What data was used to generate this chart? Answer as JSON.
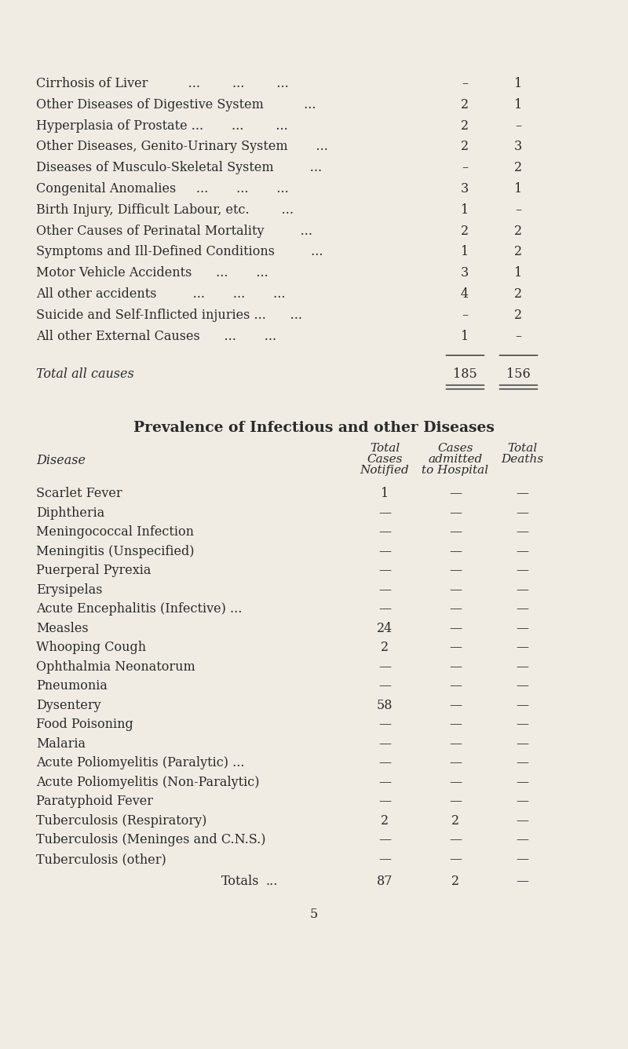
{
  "bg_color": "#f0ece4",
  "text_color": "#2a2a2a",
  "page_number": "5",
  "section1": {
    "rows": [
      {
        "disease": "Cirrhosis of Liver          ...        ...        ...",
        "col1": "–",
        "col2": "1"
      },
      {
        "disease": "Other Diseases of Digestive System          ...",
        "col1": "2",
        "col2": "1"
      },
      {
        "disease": "Hyperplasia of Prostate ...       ...        ...",
        "col1": "2",
        "col2": "–"
      },
      {
        "disease": "Other Diseases, Genito-Urinary System       ...",
        "col1": "2",
        "col2": "3"
      },
      {
        "disease": "Diseases of Musculo-Skeletal System         ...",
        "col1": "–",
        "col2": "2"
      },
      {
        "disease": "Congenital Anomalies     ...       ...       ...",
        "col1": "3",
        "col2": "1"
      },
      {
        "disease": "Birth Injury, Difficult Labour, etc.        ...",
        "col1": "1",
        "col2": "–"
      },
      {
        "disease": "Other Causes of Perinatal Mortality         ...",
        "col1": "2",
        "col2": "2"
      },
      {
        "disease": "Symptoms and Ill-Defined Conditions         ...",
        "col1": "1",
        "col2": "2"
      },
      {
        "disease": "Motor Vehicle Accidents      ...       ...",
        "col1": "3",
        "col2": "1"
      },
      {
        "disease": "All other accidents         ...       ...       ...",
        "col1": "4",
        "col2": "2"
      },
      {
        "disease": "Suicide and Self-Inflicted injuries ...      ...",
        "col1": "–",
        "col2": "2"
      },
      {
        "disease": "All other External Causes      ...       ...",
        "col1": "1",
        "col2": "–"
      }
    ],
    "total_label": "Total all causes",
    "total_col1": "185",
    "total_col2": "156"
  },
  "section2": {
    "title": "Prevalence of Infectious and other Diseases",
    "rows": [
      {
        "disease": "Scarlet Fever",
        "ellipsis": "...        ...",
        "col1": "1",
        "col2": "—",
        "col3": "—"
      },
      {
        "disease": "Diphtheria",
        "ellipsis": "...        ...   ...",
        "col1": "—",
        "col2": "—",
        "col3": "—"
      },
      {
        "disease": "Meningococcal Infection",
        "ellipsis": "...",
        "col1": "—",
        "col2": "—",
        "col3": "—"
      },
      {
        "disease": "Meningitis (Unspecified)",
        "ellipsis": "...",
        "col1": "—",
        "col2": "—",
        "col3": "—"
      },
      {
        "disease": "Puerperal Pyrexia",
        "ellipsis": "...        ...",
        "col1": "—",
        "col2": "—",
        "col3": "—"
      },
      {
        "disease": "Erysipelas",
        "ellipsis": "...        ...",
        "col1": "—",
        "col2": "—",
        "col3": "—"
      },
      {
        "disease": "Acute Encephalitis (Infective) ...",
        "ellipsis": "",
        "col1": "—",
        "col2": "—",
        "col3": "—"
      },
      {
        "disease": "Measles",
        "ellipsis": "...        ...   ...",
        "col1": "24",
        "col2": "—",
        "col3": "—"
      },
      {
        "disease": "Whooping Cough",
        "ellipsis": "...        ...",
        "col1": "2",
        "col2": "—",
        "col3": "—"
      },
      {
        "disease": "Ophthalmia Neonatorum",
        "ellipsis": "...",
        "col1": "—",
        "col2": "—",
        "col3": "—"
      },
      {
        "disease": "Pneumonia",
        "ellipsis": "...        ...   ...",
        "col1": "—",
        "col2": "—",
        "col3": "—"
      },
      {
        "disease": "Dysentery",
        "ellipsis": "...        ...   ...",
        "col1": "58",
        "col2": "—",
        "col3": "—"
      },
      {
        "disease": "Food Poisoning",
        "ellipsis": "...        ...",
        "col1": "—",
        "col2": "—",
        "col3": "—"
      },
      {
        "disease": "Malaria",
        "ellipsis": "...        ...   ...",
        "col1": "—",
        "col2": "—",
        "col3": "—"
      },
      {
        "disease": "Acute Poliomyelitis (Paralytic) ...",
        "ellipsis": "",
        "col1": "—",
        "col2": "—",
        "col3": "—"
      },
      {
        "disease": "Acute Poliomyelitis (Non-Paralytic)",
        "ellipsis": "",
        "col1": "—",
        "col2": "—",
        "col3": "—"
      },
      {
        "disease": "Paratyphoid Fever",
        "ellipsis": "...        ...",
        "col1": "—",
        "col2": "—",
        "col3": "—"
      },
      {
        "disease": "Tuberculosis (Respiratory)",
        "ellipsis": "...",
        "col1": "2",
        "col2": "2",
        "col3": "—"
      },
      {
        "disease": "Tuberculosis (Meninges and C.N.S.)",
        "ellipsis": "",
        "col1": "—",
        "col2": "—",
        "col3": "—"
      },
      {
        "disease": "Tuberculosis (other)",
        "ellipsis": "",
        "col1": "—",
        "col2": "—",
        "col3": "—"
      }
    ],
    "total_col1": "87",
    "total_col2": "2",
    "total_col3": "—"
  }
}
